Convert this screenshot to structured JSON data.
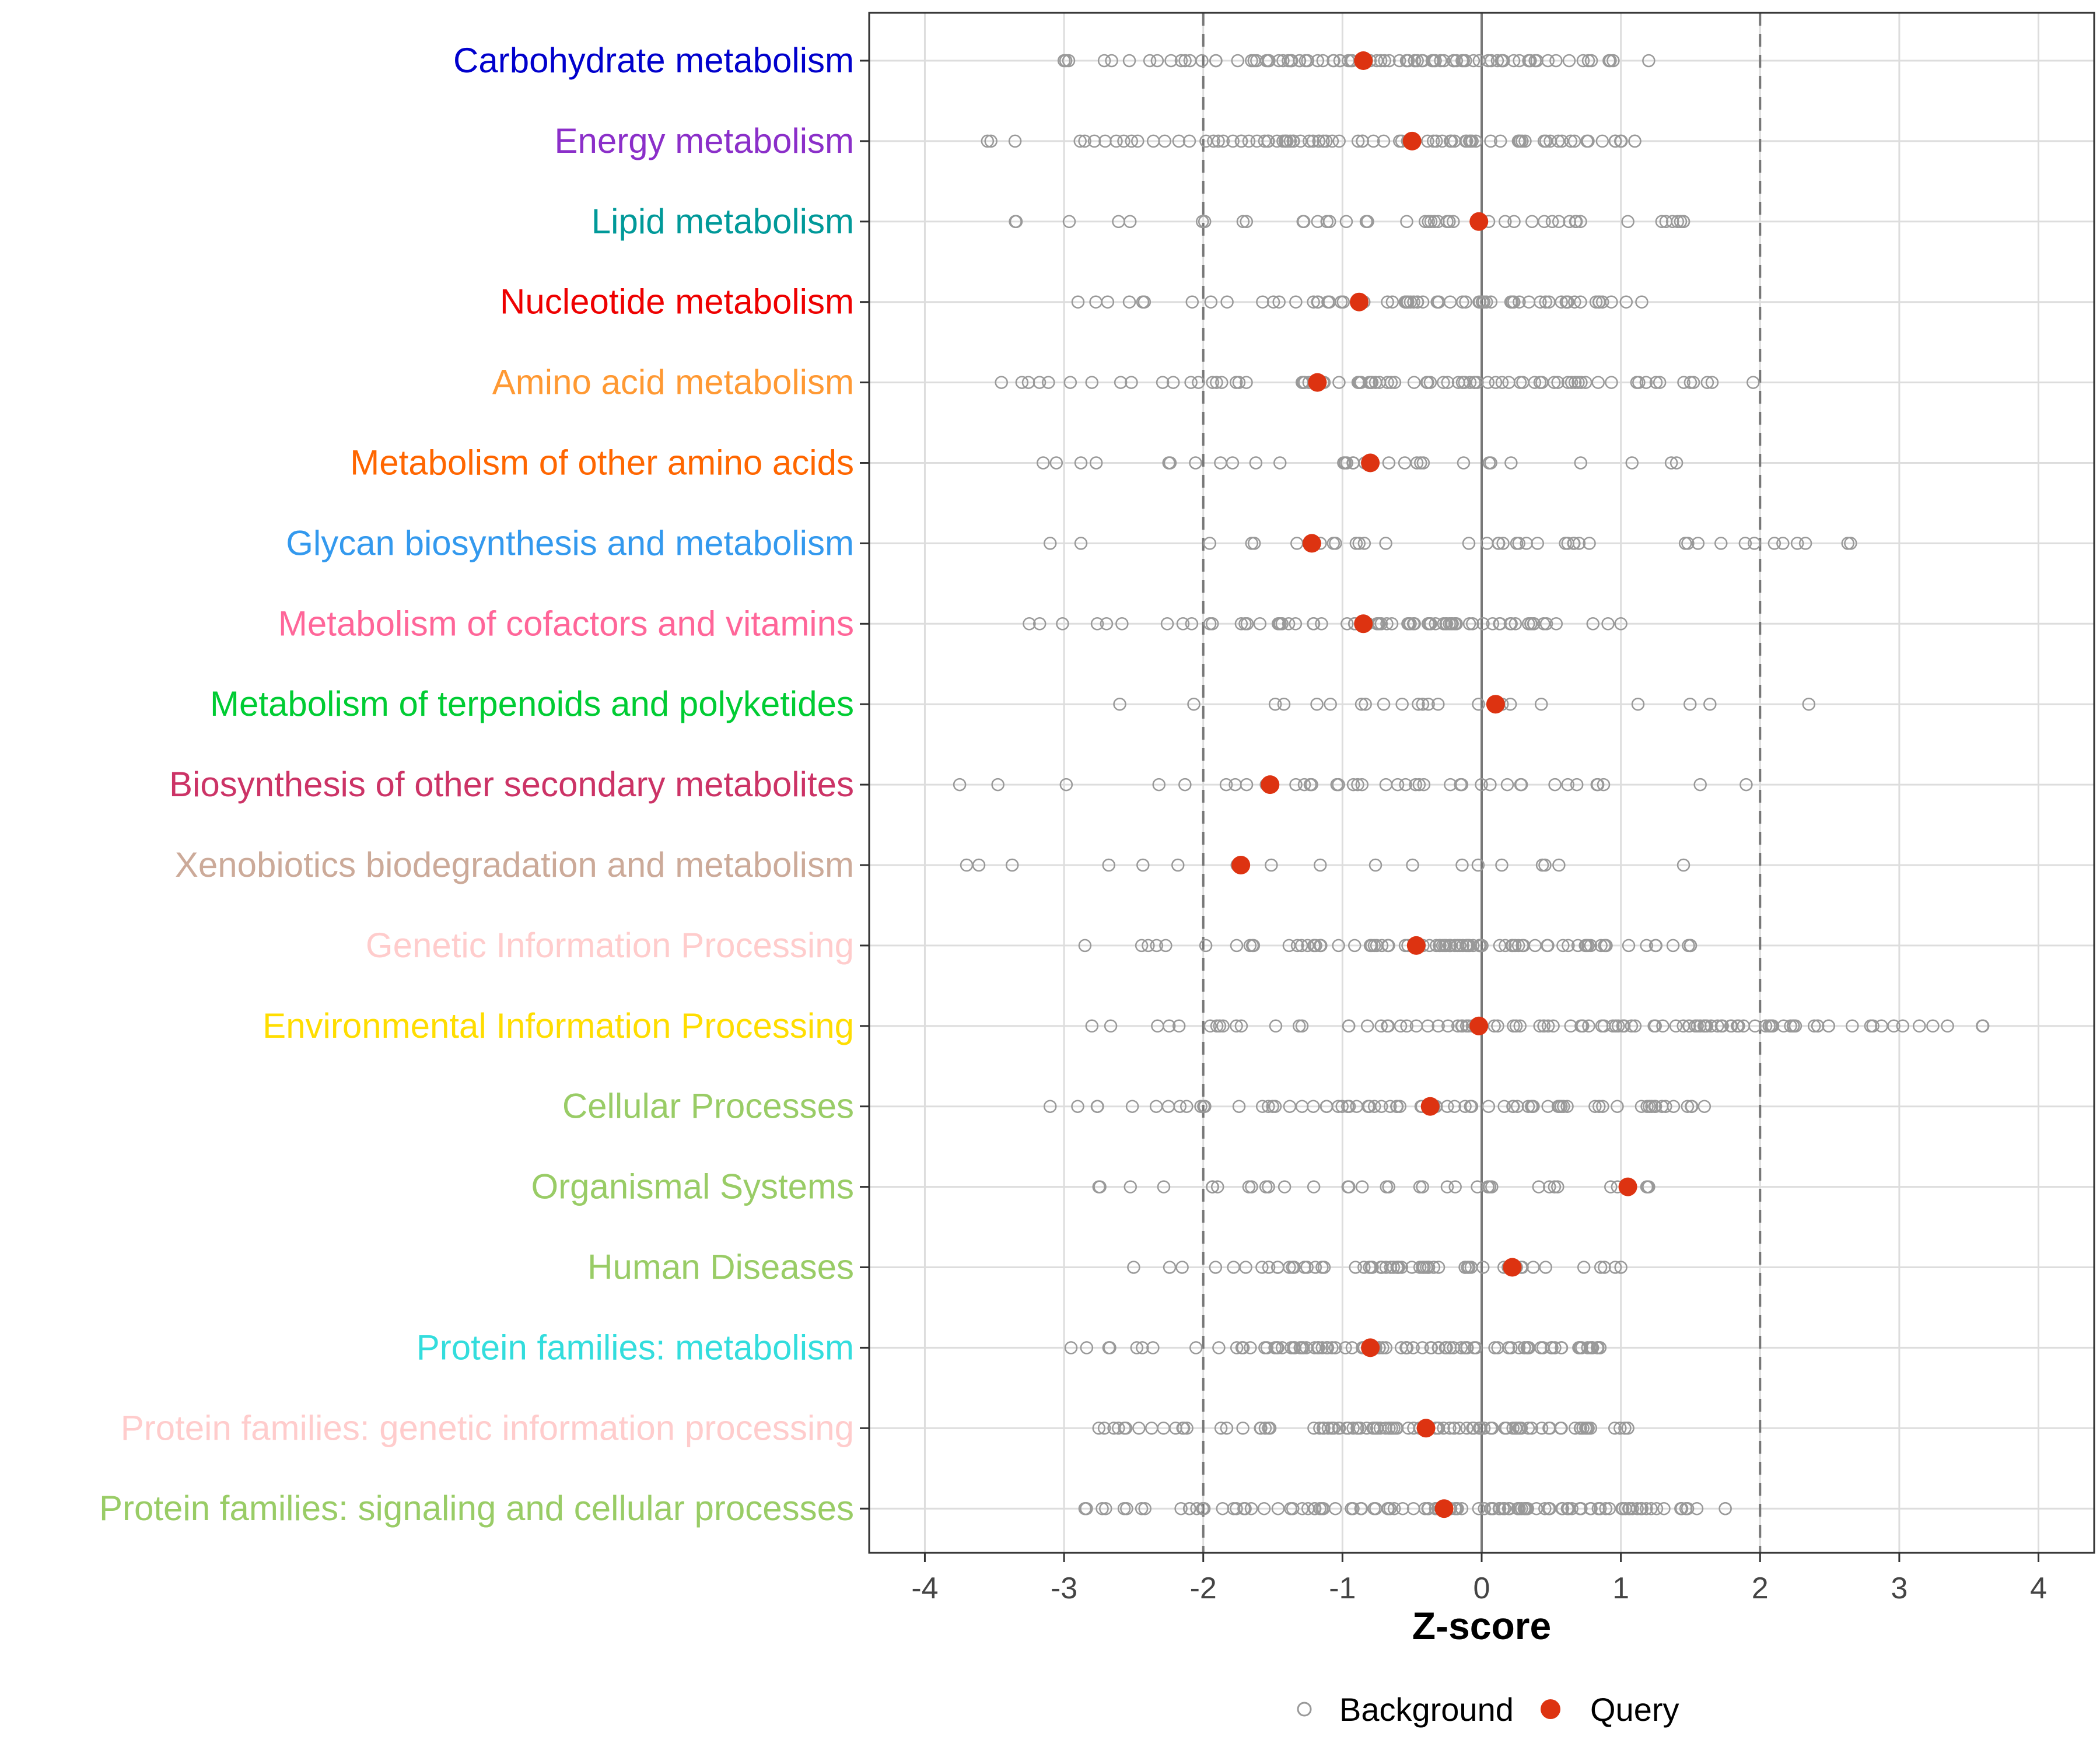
{
  "chart_data": {
    "type": "scatter",
    "title": "",
    "xlabel": "Z-score",
    "ylabel": "",
    "xlim": [
      -4.4,
      4.4
    ],
    "xticks": [
      -4,
      -3,
      -2,
      -1,
      0,
      1,
      2,
      3,
      4
    ],
    "xtick_labels": [
      "-4",
      "-3",
      "-2",
      "-1",
      "0",
      "1",
      "2",
      "3",
      "4"
    ],
    "reference_lines": [
      -2,
      0,
      2
    ],
    "grid": true,
    "legend_position": "bottom",
    "legend": [
      {
        "name": "Background",
        "marker": "open-circle",
        "color": "#999999"
      },
      {
        "name": "Query",
        "marker": "filled-circle",
        "color": "#DD3311"
      }
    ],
    "categories": [
      {
        "label": "Carbohydrate metabolism",
        "color": "#0000CC",
        "query": -0.85,
        "min": -3.0,
        "max": 1.2,
        "n": 95
      },
      {
        "label": "Energy metabolism",
        "color": "#8B2FC9",
        "query": -0.5,
        "min": -3.55,
        "max": 1.1,
        "n": 90
      },
      {
        "label": "Lipid metabolism",
        "color": "#009999",
        "query": -0.02,
        "min": -3.35,
        "max": 1.45,
        "n": 45
      },
      {
        "label": "Nucleotide metabolism",
        "color": "#EE0000",
        "query": -0.88,
        "min": -2.9,
        "max": 1.15,
        "n": 65
      },
      {
        "label": "Amino acid metabolism",
        "color": "#FF9933",
        "query": -1.18,
        "min": -3.45,
        "max": 1.95,
        "n": 85
      },
      {
        "label": "Metabolism of other amino acids",
        "color": "#FF6600",
        "query": -0.8,
        "min": -3.15,
        "max": 1.4,
        "n": 30
      },
      {
        "label": "Glycan biosynthesis and metabolism",
        "color": "#3399EE",
        "query": -1.22,
        "min": -3.1,
        "max": 2.65,
        "n": 40
      },
      {
        "label": "Metabolism of cofactors and vitamins",
        "color": "#FF6699",
        "query": -0.85,
        "min": -3.25,
        "max": 1.0,
        "n": 75
      },
      {
        "label": "Metabolism of terpenoids and polyketides",
        "color": "#00CC33",
        "query": 0.1,
        "min": -2.6,
        "max": 2.35,
        "n": 22
      },
      {
        "label": "Biosynthesis of other secondary metabolites",
        "color": "#CC3366",
        "query": -1.52,
        "min": -3.75,
        "max": 1.9,
        "n": 40
      },
      {
        "label": "Xenobiotics biodegradation and metabolism",
        "color": "#CCAA99",
        "query": -1.73,
        "min": -3.7,
        "max": 1.45,
        "n": 18
      },
      {
        "label": "Genetic Information Processing",
        "color": "#FFCCCC",
        "query": -0.47,
        "min": -2.85,
        "max": 1.5,
        "n": 90
      },
      {
        "label": "Environmental Information Processing",
        "color": "#FFDD00",
        "query": -0.02,
        "min": -2.8,
        "max": 3.6,
        "n": 110
      },
      {
        "label": "Cellular Processes",
        "color": "#99CC66",
        "query": -0.37,
        "min": -3.1,
        "max": 1.6,
        "n": 80
      },
      {
        "label": "Organismal Systems",
        "color": "#99CC66",
        "query": 1.05,
        "min": -2.75,
        "max": 1.2,
        "n": 35
      },
      {
        "label": "Human Diseases",
        "color": "#99CC66",
        "query": 0.22,
        "min": -2.5,
        "max": 1.0,
        "n": 60
      },
      {
        "label": "Protein families: metabolism",
        "color": "#33DDDD",
        "query": -0.8,
        "min": -2.95,
        "max": 0.85,
        "n": 100
      },
      {
        "label": "Protein families: genetic information processing",
        "color": "#FFCCCC",
        "query": -0.4,
        "min": -2.75,
        "max": 1.05,
        "n": 110
      },
      {
        "label": "Protein families: signaling and cellular processes",
        "color": "#99CC66",
        "query": -0.27,
        "min": -2.85,
        "max": 1.75,
        "n": 120
      }
    ]
  }
}
